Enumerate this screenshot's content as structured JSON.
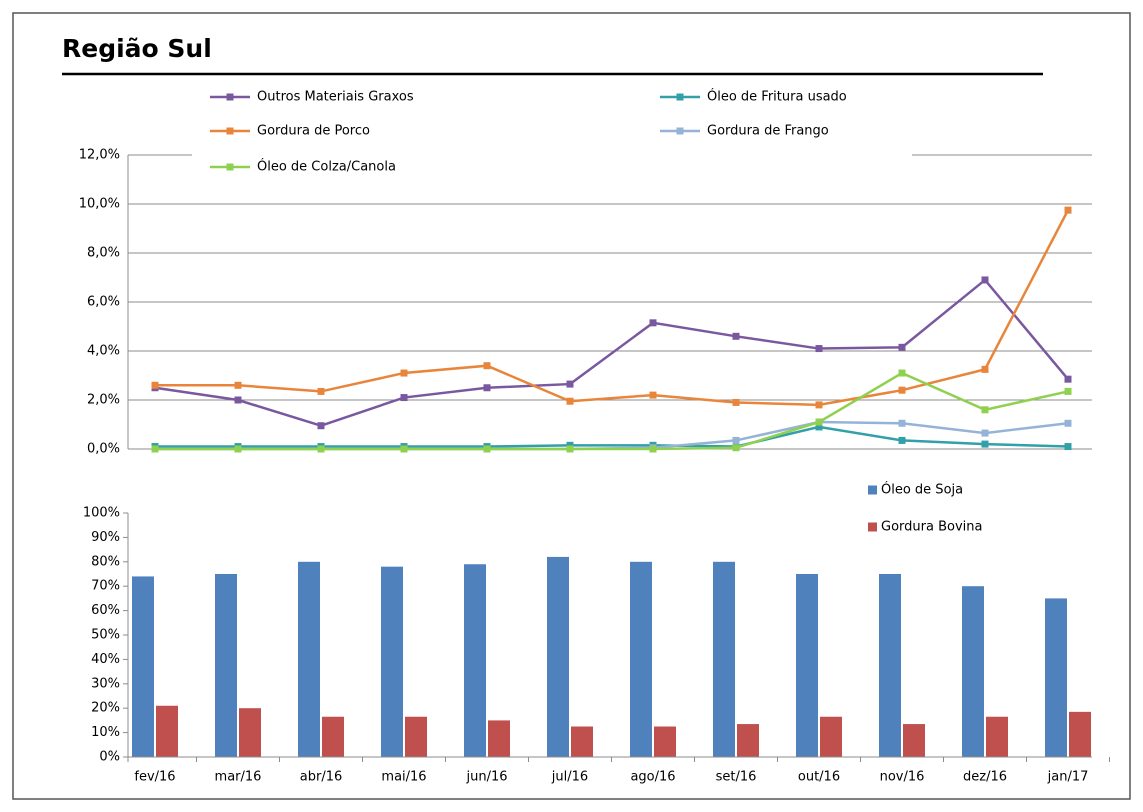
{
  "title": "Região Sul",
  "chart_data": [
    {
      "type": "line",
      "ylim": [
        0,
        12
      ],
      "yticks": [
        {
          "value": 0,
          "label": "0,0%"
        },
        {
          "value": 2,
          "label": "2,0%"
        },
        {
          "value": 4,
          "label": "4,0%"
        },
        {
          "value": 6,
          "label": "6,0%"
        },
        {
          "value": 8,
          "label": "8,0%"
        },
        {
          "value": 10,
          "label": "10,0%"
        },
        {
          "value": 12,
          "label": "12,0%"
        }
      ],
      "grid": true,
      "series": [
        {
          "name": "Outros Materiais Graxos",
          "color": "#7a58a0",
          "values": [
            2.5,
            2.0,
            0.95,
            2.1,
            2.5,
            2.65,
            5.15,
            4.6,
            4.1,
            4.15,
            6.9,
            2.85
          ]
        },
        {
          "name": "Óleo de Fritura usado",
          "color": "#31a0a8",
          "values": [
            0.1,
            0.1,
            0.1,
            0.1,
            0.1,
            0.15,
            0.15,
            0.1,
            0.9,
            0.35,
            0.2,
            0.1
          ]
        },
        {
          "name": "Gordura de Porco",
          "color": "#e8853a",
          "values": [
            2.6,
            2.6,
            2.35,
            3.1,
            3.4,
            1.95,
            2.2,
            1.9,
            1.8,
            2.4,
            3.25,
            9.75
          ]
        },
        {
          "name": "Gordura de Frango",
          "color": "#95b3d7",
          "values": [
            0,
            0,
            0,
            0,
            0,
            0,
            0.05,
            0.35,
            1.1,
            1.05,
            0.65,
            1.05
          ]
        },
        {
          "name": "Óleo de Colza/Canola",
          "color": "#8fd14f",
          "values": [
            0,
            0,
            0,
            0,
            0,
            0,
            0,
            0.05,
            1.1,
            3.1,
            1.6,
            2.35
          ]
        }
      ]
    },
    {
      "type": "bar",
      "categories": [
        "fev/16",
        "mar/16",
        "abr/16",
        "mai/16",
        "jun/16",
        "jul/16",
        "ago/16",
        "set/16",
        "out/16",
        "nov/16",
        "dez/16",
        "jan/17"
      ],
      "ylim": [
        0,
        100
      ],
      "yticks": [
        {
          "value": 0,
          "label": "0%"
        },
        {
          "value": 10,
          "label": "10%"
        },
        {
          "value": 20,
          "label": "20%"
        },
        {
          "value": 30,
          "label": "30%"
        },
        {
          "value": 40,
          "label": "40%"
        },
        {
          "value": 50,
          "label": "50%"
        },
        {
          "value": 60,
          "label": "60%"
        },
        {
          "value": 70,
          "label": "70%"
        },
        {
          "value": 80,
          "label": "80%"
        },
        {
          "value": 90,
          "label": "90%"
        },
        {
          "value": 100,
          "label": "100%"
        }
      ],
      "grid": false,
      "series": [
        {
          "name": "Óleo de Soja",
          "color": "#4f81bd",
          "values": [
            74,
            75,
            80,
            78,
            79,
            82,
            80,
            80,
            75,
            75,
            70,
            65
          ]
        },
        {
          "name": "Gordura Bovina",
          "color": "#c0504d",
          "values": [
            21,
            20,
            16.5,
            16.5,
            15,
            12.5,
            12.5,
            13.5,
            16.5,
            13.5,
            16.5,
            18.5
          ]
        }
      ]
    }
  ]
}
